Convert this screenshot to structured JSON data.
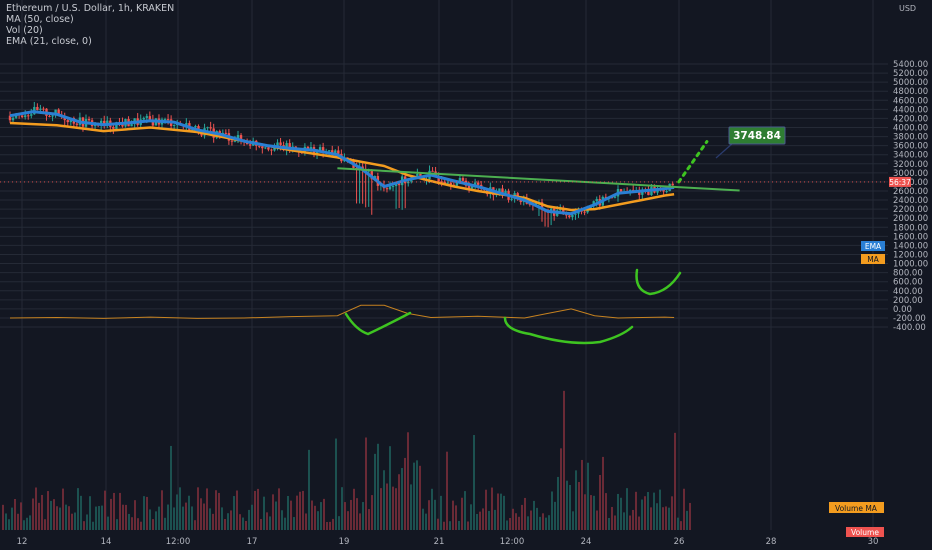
{
  "header": {
    "title": "Ethereum / U.S. Dollar, 1h, KRAKEN",
    "indicators": [
      "MA (50, close)",
      "Vol (20)",
      "EMA (21, close, 0)"
    ]
  },
  "axis": {
    "currency": "USD",
    "price_ticks": [
      "5400.00",
      "5200.00",
      "5000.00",
      "4800.00",
      "4600.00",
      "4400.00",
      "4200.00",
      "4000.00",
      "3800.00",
      "3600.00",
      "3400.00",
      "3200.00",
      "3000.00",
      "2800.00",
      "2600.00",
      "2400.00",
      "2200.00",
      "2000.00",
      "1800.00",
      "1600.00",
      "1400.00",
      "1200.00",
      "1000.00",
      "800.00",
      "600.00",
      "400.00",
      "200.00",
      "0.00",
      "-200.00",
      "-400.00"
    ],
    "x_ticks": [
      "12",
      "14",
      "12:00",
      "17",
      "19",
      "21",
      "12:00",
      "24",
      "26",
      "28",
      "30"
    ]
  },
  "labels": {
    "target": "3748.84",
    "countdown": "56:37",
    "ema": "EMA",
    "ma": "MA",
    "volume_ma": "Volume MA",
    "volume": "Volume"
  },
  "colors": {
    "background": "#131722",
    "grid": "#252a36",
    "ema": "#2a7fd4",
    "ma": "#f39c1f",
    "trendline": "#4caf50",
    "annotation": "#3ec421",
    "target": "#2e7d32",
    "up": "#26a69a",
    "down": "#ef5350"
  },
  "chart_data": {
    "type": "candlestick",
    "title": "Ethereum / U.S. Dollar, 1h, KRAKEN",
    "x_categories": [
      "12",
      "14",
      "12:00",
      "17",
      "19",
      "21",
      "12:00",
      "24",
      "26",
      "28",
      "30"
    ],
    "ylim": [
      -450,
      5450
    ],
    "ema_21": [
      [
        12,
        4260
      ],
      [
        12.5,
        4350
      ],
      [
        13,
        4290
      ],
      [
        13.5,
        4120
      ],
      [
        14,
        4060
      ],
      [
        14.5,
        4100
      ],
      [
        15,
        4150
      ],
      [
        15.5,
        4120
      ],
      [
        16,
        3950
      ],
      [
        16.5,
        3850
      ],
      [
        17,
        3700
      ],
      [
        17.5,
        3600
      ],
      [
        18,
        3540
      ],
      [
        18.5,
        3500
      ],
      [
        19,
        3400
      ],
      [
        19.5,
        3100
      ],
      [
        20,
        2700
      ],
      [
        20.5,
        2850
      ],
      [
        21,
        2950
      ],
      [
        21.5,
        2820
      ],
      [
        22,
        2700
      ],
      [
        22.5,
        2550
      ],
      [
        23,
        2400
      ],
      [
        23.5,
        2150
      ],
      [
        24,
        2100
      ],
      [
        24.5,
        2300
      ],
      [
        25,
        2550
      ],
      [
        25.5,
        2600
      ],
      [
        26,
        2650
      ],
      [
        26.2,
        2680
      ]
    ],
    "ma_50": [
      [
        12,
        4100
      ],
      [
        13,
        4050
      ],
      [
        14,
        3920
      ],
      [
        15,
        4000
      ],
      [
        16,
        3900
      ],
      [
        17,
        3700
      ],
      [
        18,
        3500
      ],
      [
        19,
        3340
      ],
      [
        20,
        3150
      ],
      [
        20.5,
        2950
      ],
      [
        21,
        2820
      ],
      [
        21.5,
        2700
      ],
      [
        22,
        2600
      ],
      [
        23,
        2450
      ],
      [
        23.5,
        2260
      ],
      [
        24,
        2180
      ],
      [
        24.5,
        2200
      ],
      [
        25,
        2300
      ],
      [
        25.5,
        2400
      ],
      [
        26,
        2500
      ],
      [
        26.2,
        2530
      ]
    ],
    "trendline": [
      [
        19,
        3100
      ],
      [
        27.6,
        2610
      ]
    ],
    "projection": [
      [
        26.3,
        2800
      ],
      [
        26.9,
        3690
      ]
    ],
    "target_value": 3748.84,
    "current_price_marker": 2800,
    "volume_ma": [
      [
        12,
        -200
      ],
      [
        13,
        -190
      ],
      [
        14,
        -210
      ],
      [
        15,
        -180
      ],
      [
        16,
        -210
      ],
      [
        17,
        -200
      ],
      [
        18,
        -170
      ],
      [
        19,
        -150
      ],
      [
        19.5,
        80
      ],
      [
        20,
        80
      ],
      [
        20.5,
        -100
      ],
      [
        21,
        -190
      ],
      [
        22,
        -160
      ],
      [
        23,
        -200
      ],
      [
        23.5,
        -100
      ],
      [
        24,
        0
      ],
      [
        24.5,
        -150
      ],
      [
        25,
        -200
      ],
      [
        26,
        -180
      ],
      [
        26.2,
        -190
      ]
    ],
    "volume_ma_label": "Volume MA",
    "volume_label": "Volume"
  }
}
